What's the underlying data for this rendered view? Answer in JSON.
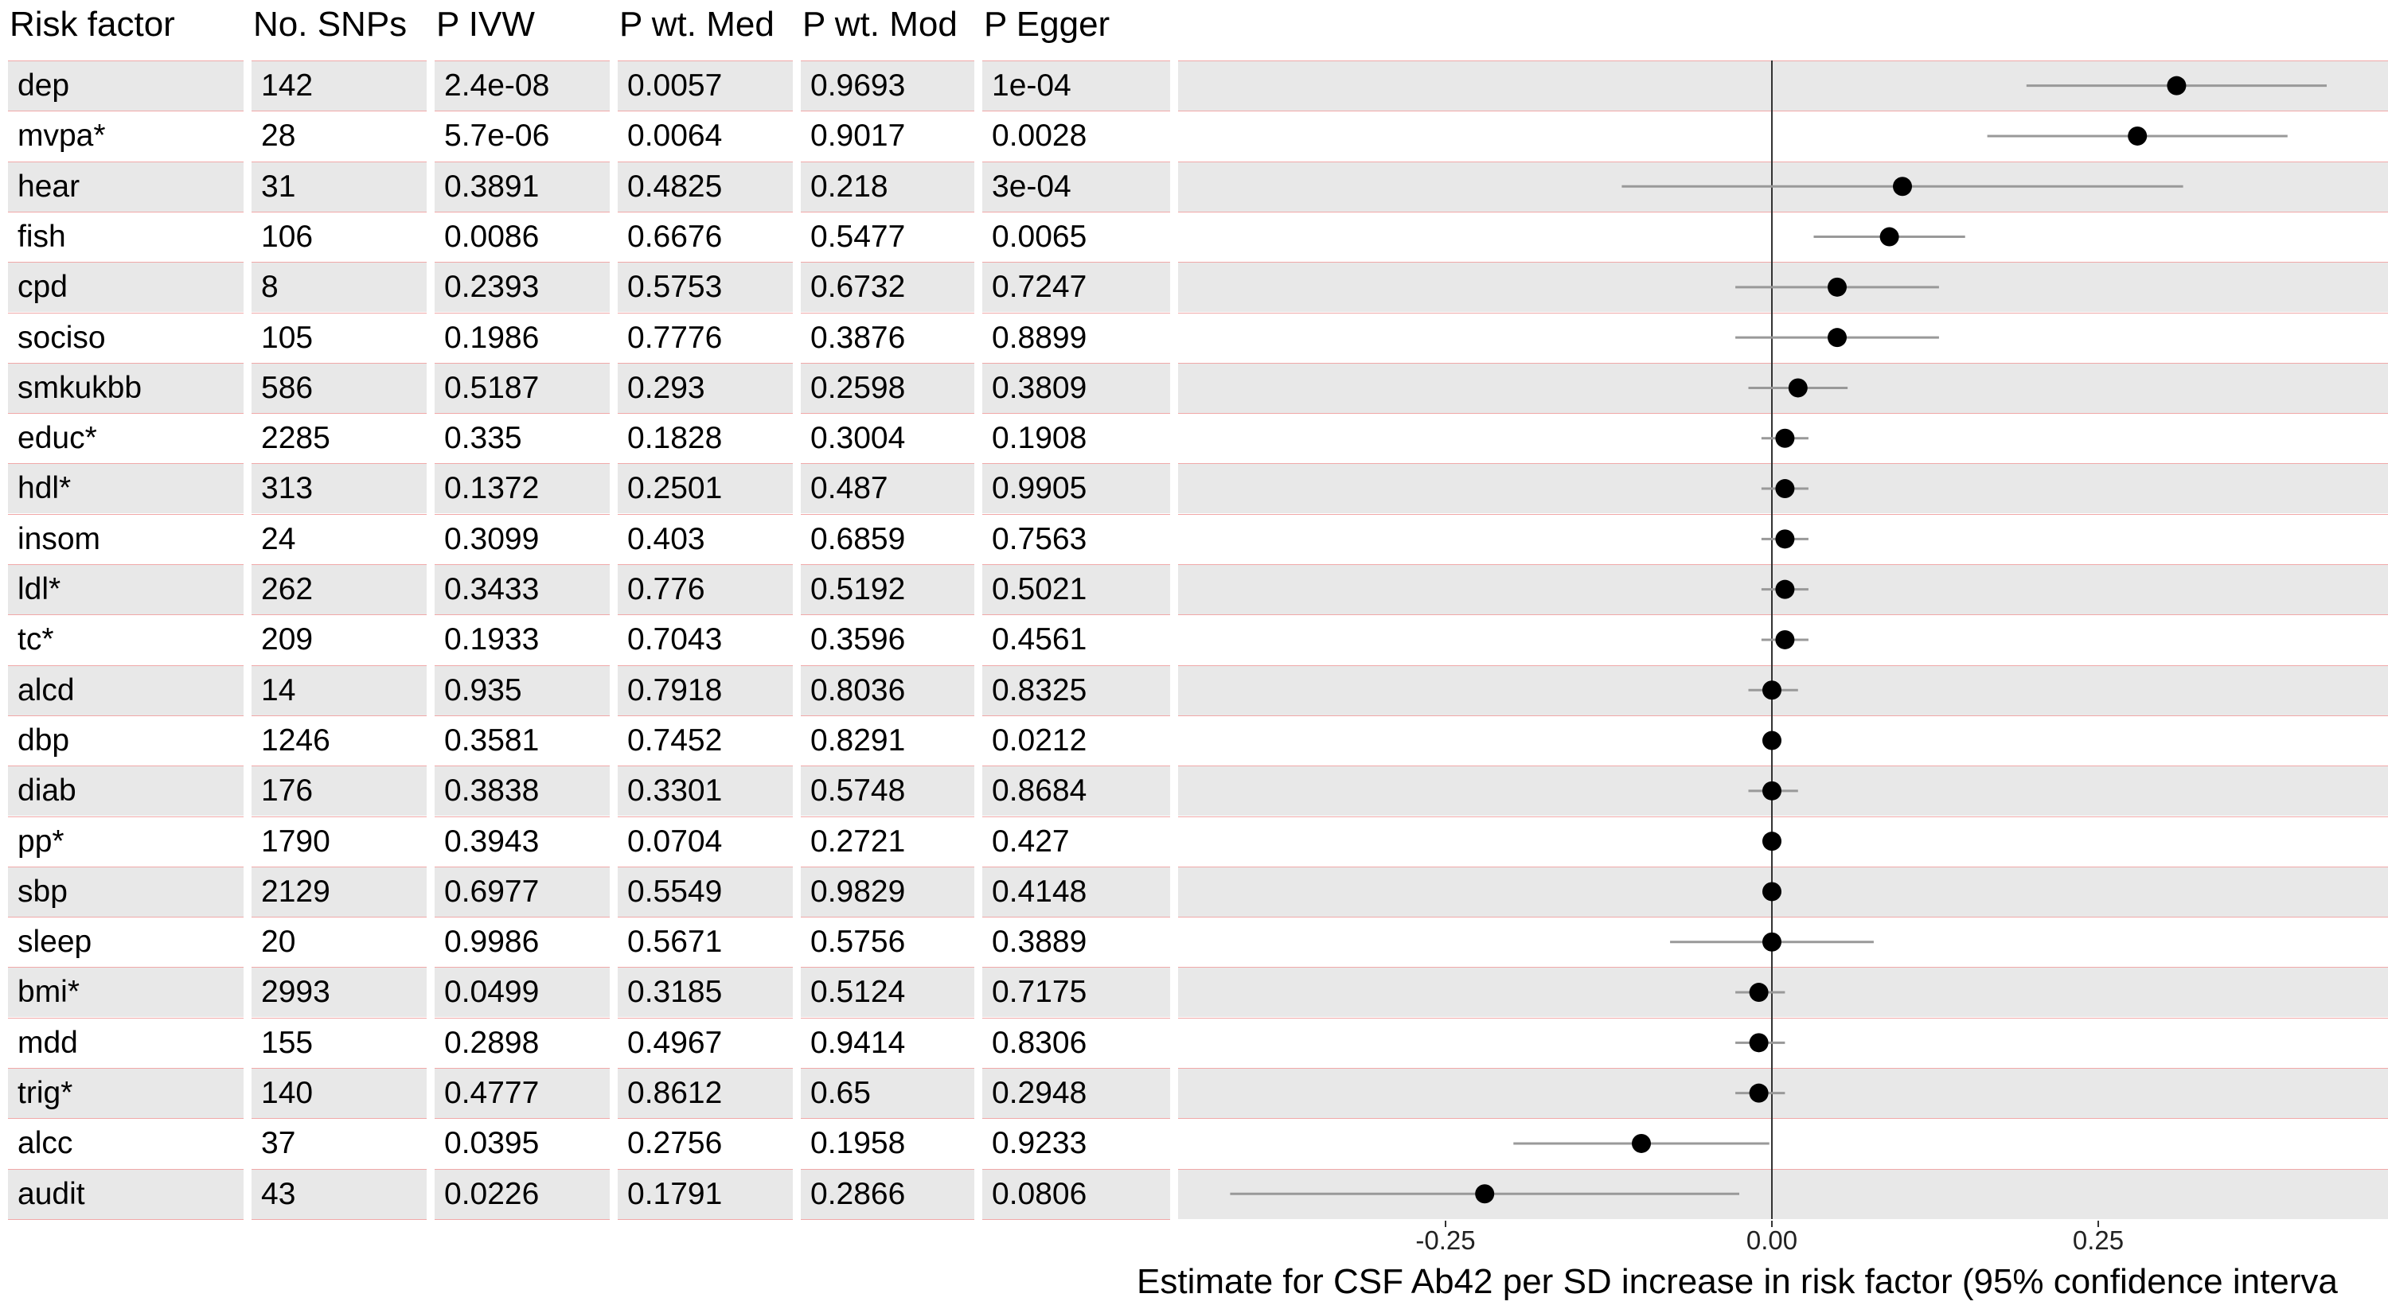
{
  "chart_data": {
    "type": "forest",
    "columns": {
      "risk_factor": "Risk factor",
      "n_snps": "No. SNPs",
      "p_ivw": "P IVW",
      "p_wmed": "P wt. Med",
      "p_wmod": "P wt. Mod",
      "p_egger": "P Egger"
    },
    "rows": [
      {
        "risk_factor": "dep",
        "n_snps": "142",
        "p_ivw": "2.4e-08",
        "p_wmed": "0.0057",
        "p_wmod": "0.9693",
        "p_egger": "1e-04",
        "estimate": 0.31,
        "ci": [
          0.195,
          0.425
        ]
      },
      {
        "risk_factor": "mvpa*",
        "n_snps": "28",
        "p_ivw": "5.7e-06",
        "p_wmed": "0.0064",
        "p_wmod": "0.9017",
        "p_egger": "0.0028",
        "estimate": 0.28,
        "ci": [
          0.165,
          0.395
        ]
      },
      {
        "risk_factor": "hear",
        "n_snps": "31",
        "p_ivw": "0.3891",
        "p_wmed": "0.4825",
        "p_wmod": "0.218",
        "p_egger": "3e-04",
        "estimate": 0.1,
        "ci": [
          -0.115,
          0.315
        ]
      },
      {
        "risk_factor": "fish",
        "n_snps": "106",
        "p_ivw": "0.0086",
        "p_wmed": "0.6676",
        "p_wmod": "0.5477",
        "p_egger": "0.0065",
        "estimate": 0.09,
        "ci": [
          0.032,
          0.148
        ]
      },
      {
        "risk_factor": "cpd",
        "n_snps": "8",
        "p_ivw": "0.2393",
        "p_wmed": "0.5753",
        "p_wmod": "0.6732",
        "p_egger": "0.7247",
        "estimate": 0.05,
        "ci": [
          -0.028,
          0.128
        ]
      },
      {
        "risk_factor": "sociso",
        "n_snps": "105",
        "p_ivw": "0.1986",
        "p_wmed": "0.7776",
        "p_wmod": "0.3876",
        "p_egger": "0.8899",
        "estimate": 0.05,
        "ci": [
          -0.028,
          0.128
        ]
      },
      {
        "risk_factor": "smkukbb",
        "n_snps": "586",
        "p_ivw": "0.5187",
        "p_wmed": "0.293",
        "p_wmod": "0.2598",
        "p_egger": "0.3809",
        "estimate": 0.02,
        "ci": [
          -0.018,
          0.058
        ]
      },
      {
        "risk_factor": "educ*",
        "n_snps": "2285",
        "p_ivw": "0.335",
        "p_wmed": "0.1828",
        "p_wmod": "0.3004",
        "p_egger": "0.1908",
        "estimate": 0.01,
        "ci": [
          -0.008,
          0.028
        ]
      },
      {
        "risk_factor": "hdl*",
        "n_snps": "313",
        "p_ivw": "0.1372",
        "p_wmed": "0.2501",
        "p_wmod": "0.487",
        "p_egger": "0.9905",
        "estimate": 0.01,
        "ci": [
          -0.008,
          0.028
        ]
      },
      {
        "risk_factor": "insom",
        "n_snps": "24",
        "p_ivw": "0.3099",
        "p_wmed": "0.403",
        "p_wmod": "0.6859",
        "p_egger": "0.7563",
        "estimate": 0.01,
        "ci": [
          -0.008,
          0.028
        ]
      },
      {
        "risk_factor": "ldl*",
        "n_snps": "262",
        "p_ivw": "0.3433",
        "p_wmed": "0.776",
        "p_wmod": "0.5192",
        "p_egger": "0.5021",
        "estimate": 0.01,
        "ci": [
          -0.008,
          0.028
        ]
      },
      {
        "risk_factor": "tc*",
        "n_snps": "209",
        "p_ivw": "0.1933",
        "p_wmed": "0.7043",
        "p_wmod": "0.3596",
        "p_egger": "0.4561",
        "estimate": 0.01,
        "ci": [
          -0.008,
          0.028
        ]
      },
      {
        "risk_factor": "alcd",
        "n_snps": "14",
        "p_ivw": "0.935",
        "p_wmed": "0.7918",
        "p_wmod": "0.8036",
        "p_egger": "0.8325",
        "estimate": 0.0,
        "ci": [
          -0.018,
          0.02
        ]
      },
      {
        "risk_factor": "dbp",
        "n_snps": "1246",
        "p_ivw": "0.3581",
        "p_wmed": "0.7452",
        "p_wmod": "0.8291",
        "p_egger": "0.0212",
        "estimate": 0.0,
        "ci": [
          -0.004,
          0.004
        ]
      },
      {
        "risk_factor": "diab",
        "n_snps": "176",
        "p_ivw": "0.3838",
        "p_wmed": "0.3301",
        "p_wmod": "0.5748",
        "p_egger": "0.8684",
        "estimate": 0.0,
        "ci": [
          -0.018,
          0.02
        ]
      },
      {
        "risk_factor": "pp*",
        "n_snps": "1790",
        "p_ivw": "0.3943",
        "p_wmed": "0.0704",
        "p_wmod": "0.2721",
        "p_egger": "0.427",
        "estimate": 0.0,
        "ci": [
          -0.004,
          0.004
        ]
      },
      {
        "risk_factor": "sbp",
        "n_snps": "2129",
        "p_ivw": "0.6977",
        "p_wmed": "0.5549",
        "p_wmod": "0.9829",
        "p_egger": "0.4148",
        "estimate": 0.0,
        "ci": [
          -0.004,
          0.004
        ]
      },
      {
        "risk_factor": "sleep",
        "n_snps": "20",
        "p_ivw": "0.9986",
        "p_wmed": "0.5671",
        "p_wmod": "0.5756",
        "p_egger": "0.3889",
        "estimate": 0.0,
        "ci": [
          -0.078,
          0.078
        ]
      },
      {
        "risk_factor": "bmi*",
        "n_snps": "2993",
        "p_ivw": "0.0499",
        "p_wmed": "0.3185",
        "p_wmod": "0.5124",
        "p_egger": "0.7175",
        "estimate": -0.01,
        "ci": [
          -0.028,
          0.01
        ]
      },
      {
        "risk_factor": "mdd",
        "n_snps": "155",
        "p_ivw": "0.2898",
        "p_wmed": "0.4967",
        "p_wmod": "0.9414",
        "p_egger": "0.8306",
        "estimate": -0.01,
        "ci": [
          -0.028,
          0.01
        ]
      },
      {
        "risk_factor": "trig*",
        "n_snps": "140",
        "p_ivw": "0.4777",
        "p_wmed": "0.8612",
        "p_wmod": "0.65",
        "p_egger": "0.2948",
        "estimate": -0.01,
        "ci": [
          -0.028,
          0.01
        ]
      },
      {
        "risk_factor": "alcc",
        "n_snps": "37",
        "p_ivw": "0.0395",
        "p_wmed": "0.2756",
        "p_wmod": "0.1958",
        "p_egger": "0.9233",
        "estimate": -0.1,
        "ci": [
          -0.198,
          -0.002
        ]
      },
      {
        "risk_factor": "audit",
        "n_snps": "43",
        "p_ivw": "0.0226",
        "p_wmed": "0.1791",
        "p_wmod": "0.2866",
        "p_egger": "0.0806",
        "estimate": -0.22,
        "ci": [
          -0.415,
          -0.025
        ]
      }
    ],
    "x_ticks": [
      -0.25,
      0.0,
      0.25
    ],
    "x_tick_labels": [
      "-0.25",
      "0.00",
      "0.25"
    ],
    "xlim": [
      -0.425,
      0.485
    ],
    "reference_line": 0,
    "xlabel": "Estimate for CSF Ab42 per SD increase in risk factor (95% confidence interva",
    "colors": {
      "band": "#e8e8e8",
      "row_border": "#f0a8a8",
      "ci": "#999999",
      "point": "#000000"
    }
  }
}
